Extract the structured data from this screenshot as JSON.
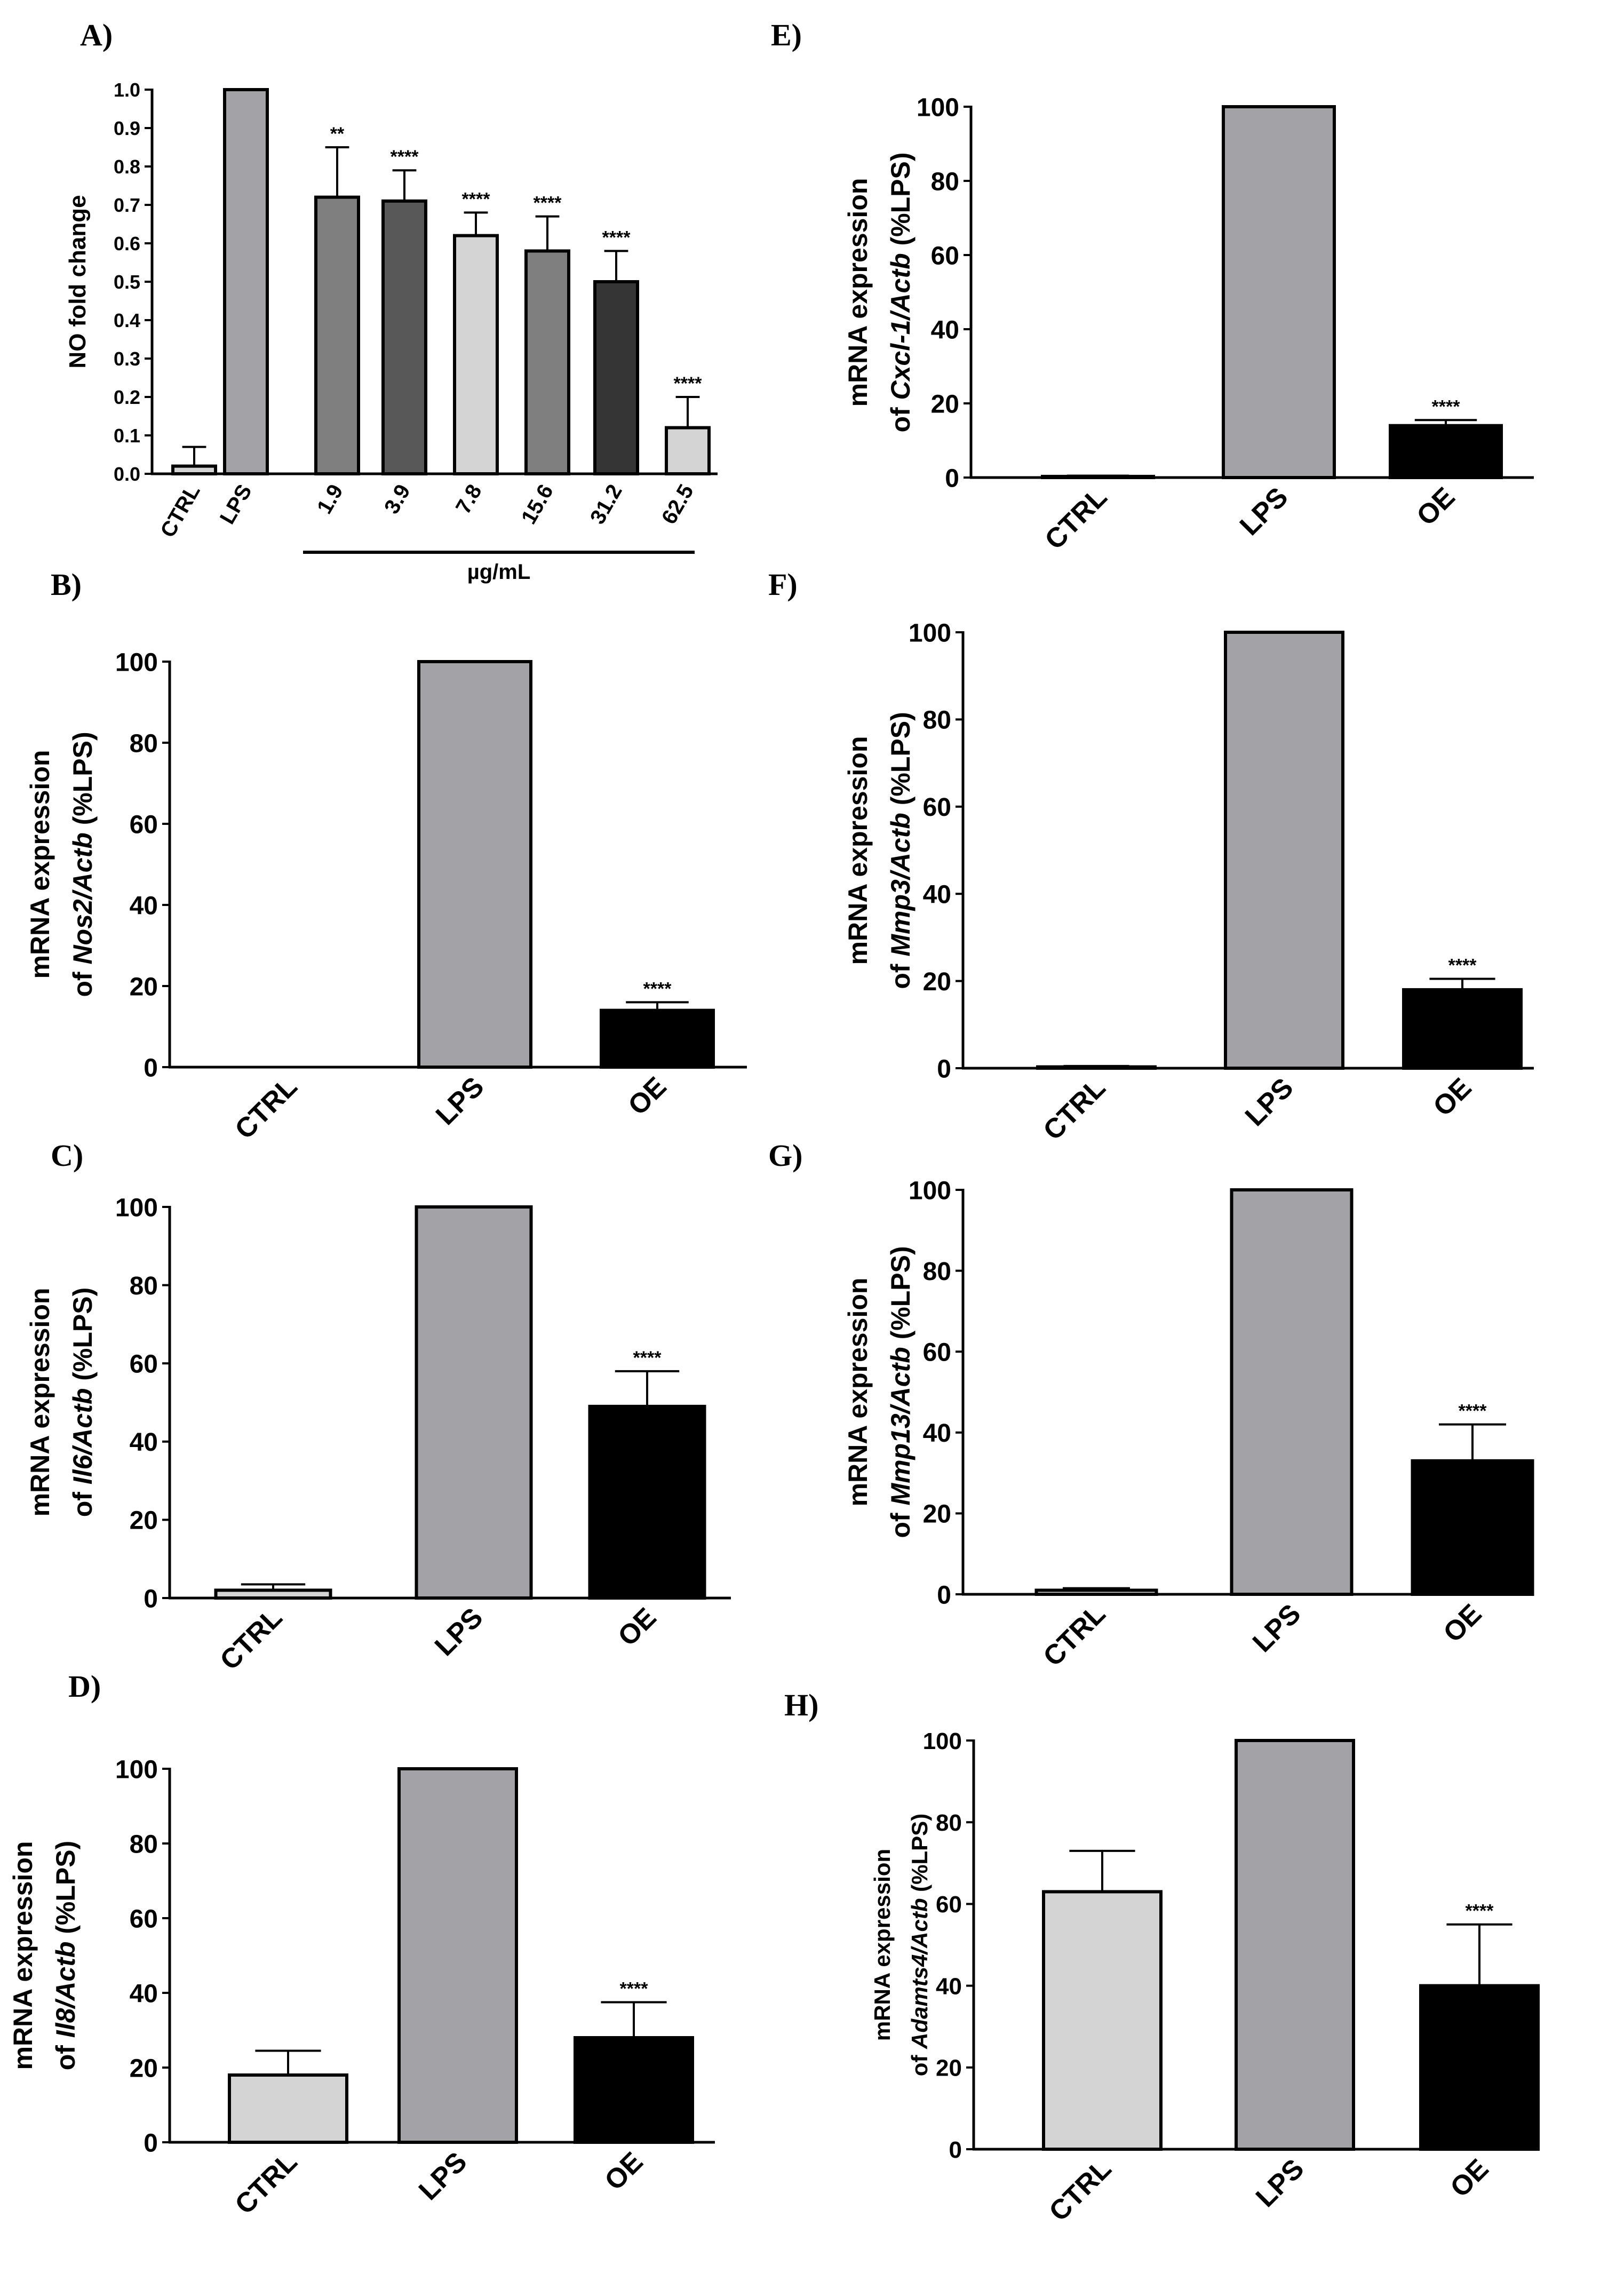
{
  "chart_data": [
    {
      "panel": "A)",
      "type": "bar",
      "ylabel": "NO fold change",
      "categories": [
        "CTRL",
        "LPS",
        "1.9",
        "3.9",
        "7.8",
        "15.6",
        "31.2",
        "62.5"
      ],
      "values": [
        0.02,
        1.0,
        0.72,
        0.71,
        0.62,
        0.58,
        0.5,
        0.12
      ],
      "errors": [
        0.05,
        0,
        0.13,
        0.08,
        0.06,
        0.09,
        0.08,
        0.08
      ],
      "significance": [
        "",
        "",
        "**",
        "****",
        "****",
        "****",
        "****",
        "****"
      ],
      "bar_colors": [
        "#d4d4d4",
        "#a3a3a7",
        "#7f7f7f",
        "#585858",
        "#d4d4d4",
        "#7f7f7f",
        "#353535",
        "#d4d4d4"
      ],
      "ylim": [
        0,
        1.0
      ],
      "yticks": [
        "0.0",
        "0.1",
        "0.2",
        "0.3",
        "0.4",
        "0.5",
        "0.6",
        "0.7",
        "0.8",
        "0.9",
        "1.0"
      ],
      "group_label": "µg/mL"
    },
    {
      "panel": "E)",
      "type": "bar",
      "ylabel_line1": "mRNA expression",
      "ylabel_line2_prefix": "of ",
      "ylabel_gene": "Cxcl-1/Actb",
      "ylabel_suffix": " (%LPS)",
      "categories": [
        "CTRL",
        "LPS",
        "OE"
      ],
      "values": [
        0.3,
        100,
        14
      ],
      "errors": [
        0.2,
        0,
        1.5
      ],
      "significance": [
        "",
        "",
        "****"
      ],
      "bar_colors": [
        "#d4d4d4",
        "#a3a3a7",
        "#000000"
      ],
      "ylim": [
        0,
        100
      ],
      "yticks": [
        "0",
        "20",
        "40",
        "60",
        "80",
        "100"
      ]
    },
    {
      "panel": "B)",
      "type": "bar",
      "ylabel_line1": "mRNA expression",
      "ylabel_line2_prefix": "of ",
      "ylabel_gene": "Nos2/Actb",
      "ylabel_suffix": " (%LPS)",
      "categories": [
        "CTRL",
        "LPS",
        "OE"
      ],
      "values": [
        0,
        100,
        14
      ],
      "errors": [
        0,
        0,
        2
      ],
      "significance": [
        "",
        "",
        "****"
      ],
      "bar_colors": [
        "#d4d4d4",
        "#a3a3a7",
        "#000000"
      ],
      "ylim": [
        0,
        100
      ],
      "yticks": [
        "0",
        "20",
        "40",
        "60",
        "80",
        "100"
      ]
    },
    {
      "panel": "F)",
      "type": "bar",
      "ylabel_line1": "mRNA expression",
      "ylabel_line2_prefix": "of ",
      "ylabel_gene": "Mmp3/Actb",
      "ylabel_suffix": " (%LPS)",
      "categories": [
        "CTRL",
        "LPS",
        "OE"
      ],
      "values": [
        0.3,
        100,
        18
      ],
      "errors": [
        0.2,
        0,
        2.5
      ],
      "significance": [
        "",
        "",
        "****"
      ],
      "bar_colors": [
        "#d4d4d4",
        "#a3a3a7",
        "#000000"
      ],
      "ylim": [
        0,
        100
      ],
      "yticks": [
        "0",
        "20",
        "40",
        "60",
        "80",
        "100"
      ]
    },
    {
      "panel": "C)",
      "type": "bar",
      "ylabel_line1": "mRNA expression",
      "ylabel_line2_prefix": "of ",
      "ylabel_gene": "Il6/Actb",
      "ylabel_suffix": " (%LPS)",
      "categories": [
        "CTRL",
        "LPS",
        "OE"
      ],
      "values": [
        2,
        100,
        49
      ],
      "errors": [
        1.5,
        0,
        9
      ],
      "significance": [
        "",
        "",
        "****"
      ],
      "bar_colors": [
        "#d4d4d4",
        "#a3a3a7",
        "#000000"
      ],
      "ylim": [
        0,
        100
      ],
      "yticks": [
        "0",
        "20",
        "40",
        "60",
        "80",
        "100"
      ]
    },
    {
      "panel": "G)",
      "type": "bar",
      "ylabel_line1": "mRNA expression",
      "ylabel_line2_prefix": "of ",
      "ylabel_gene": "Mmp13/Actb",
      "ylabel_suffix": " (%LPS)",
      "categories": [
        "CTRL",
        "LPS",
        "OE"
      ],
      "values": [
        1,
        100,
        33
      ],
      "errors": [
        0.5,
        0,
        9
      ],
      "significance": [
        "",
        "",
        "****"
      ],
      "bar_colors": [
        "#d4d4d4",
        "#a3a3a7",
        "#000000"
      ],
      "ylim": [
        0,
        100
      ],
      "yticks": [
        "0",
        "20",
        "40",
        "60",
        "80",
        "100"
      ]
    },
    {
      "panel": "D)",
      "type": "bar",
      "ylabel_line1": "mRNA expression",
      "ylabel_line2_prefix": "of ",
      "ylabel_gene": "Il8/Actb",
      "ylabel_suffix": " (%LPS)",
      "categories": [
        "CTRL",
        "LPS",
        "OE"
      ],
      "values": [
        18,
        100,
        28
      ],
      "errors": [
        6.5,
        0,
        9.5
      ],
      "significance": [
        "",
        "",
        "****"
      ],
      "bar_colors": [
        "#d4d4d4",
        "#a3a3a7",
        "#000000"
      ],
      "ylim": [
        0,
        100
      ],
      "yticks": [
        "0",
        "20",
        "40",
        "60",
        "80",
        "100"
      ]
    },
    {
      "panel": "H)",
      "type": "bar",
      "ylabel_line1": "mRNA expression",
      "ylabel_line2_prefix": "of ",
      "ylabel_gene": "Adamts4/Actb",
      "ylabel_suffix": " (%LPS)",
      "categories": [
        "CTRL",
        "LPS",
        "OE"
      ],
      "values": [
        63,
        100,
        40
      ],
      "errors": [
        10,
        0,
        15
      ],
      "significance": [
        "",
        "",
        "****"
      ],
      "bar_colors": [
        "#d4d4d4",
        "#a3a3a7",
        "#000000"
      ],
      "ylim": [
        0,
        100
      ],
      "yticks": [
        "0",
        "20",
        "40",
        "60",
        "80",
        "100"
      ]
    }
  ]
}
